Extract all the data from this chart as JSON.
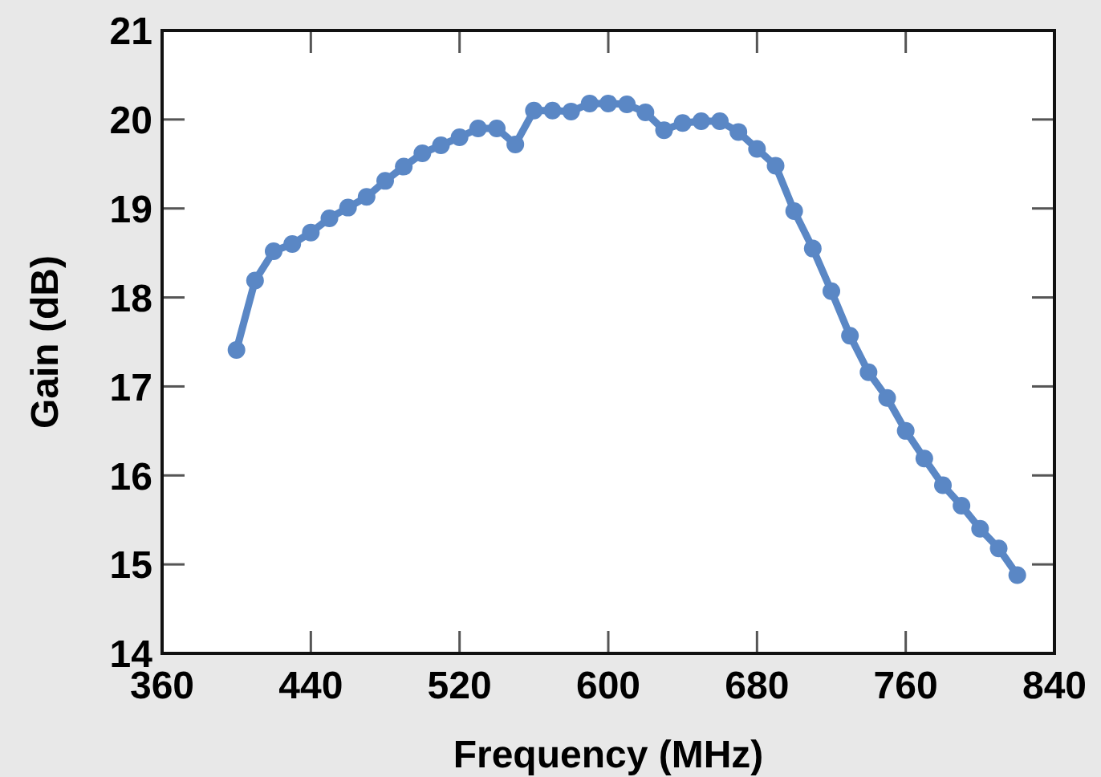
{
  "chart_data": {
    "type": "line",
    "xlabel": "Frequency (MHz)",
    "ylabel": "Gain (dB)",
    "xlim": [
      360,
      840
    ],
    "xticks": [
      360,
      440,
      520,
      600,
      680,
      760,
      840
    ],
    "ylim": [
      14,
      21
    ],
    "yticks": [
      14,
      15,
      16,
      17,
      18,
      19,
      20,
      21
    ],
    "grid": false,
    "marker": "circle",
    "line_style": "solid",
    "series": [
      {
        "color": "#5a87c5",
        "x": [
          400,
          410,
          420,
          430,
          440,
          450,
          460,
          470,
          480,
          490,
          500,
          510,
          520,
          530,
          540,
          550,
          560,
          570,
          580,
          590,
          600,
          610,
          620,
          630,
          640,
          650,
          660,
          670,
          680,
          690,
          700,
          710,
          720,
          730,
          740,
          750,
          760,
          770,
          780,
          790,
          800,
          810,
          820
        ],
        "values": [
          17.41,
          18.19,
          18.52,
          18.6,
          18.73,
          18.89,
          19.01,
          19.13,
          19.31,
          19.47,
          19.62,
          19.71,
          19.8,
          19.9,
          19.9,
          19.72,
          20.1,
          20.1,
          20.09,
          20.18,
          20.18,
          20.17,
          20.08,
          19.88,
          19.96,
          19.98,
          19.98,
          19.86,
          19.67,
          19.48,
          18.97,
          18.55,
          18.07,
          17.57,
          17.16,
          16.87,
          16.5,
          16.19,
          15.89,
          15.66,
          15.4,
          15.18,
          14.88
        ]
      }
    ]
  }
}
